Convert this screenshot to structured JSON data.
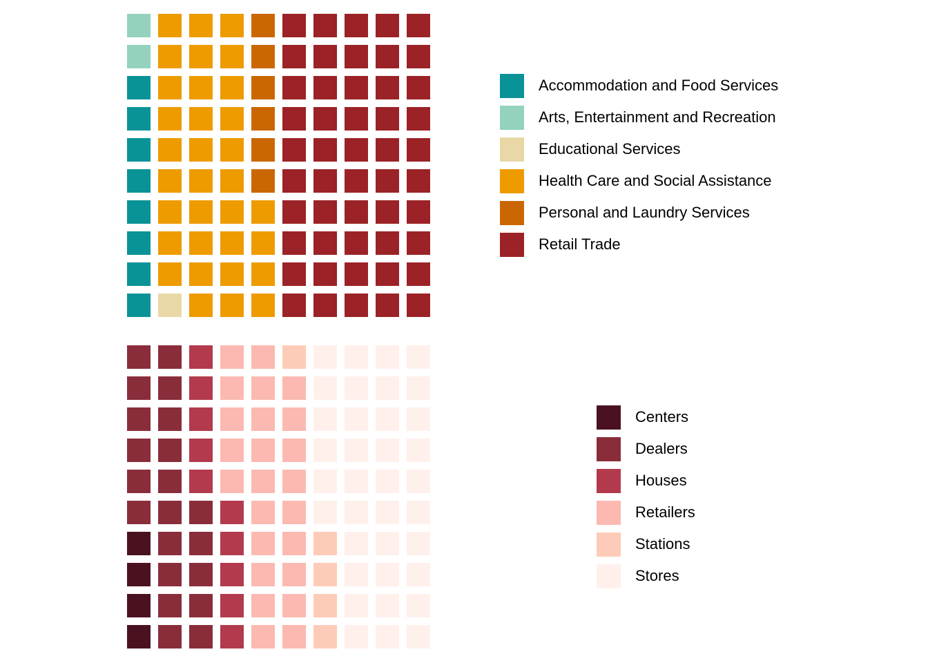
{
  "chart_data": [
    {
      "type": "waffle",
      "grid": {
        "rows": 10,
        "columns": 10,
        "fill_order": "column-wise, bottom to top, left to right"
      },
      "legend_position": "right",
      "series": [
        {
          "name": "Accommodation and Food Services",
          "value": 8,
          "color": "#0A9396"
        },
        {
          "name": "Arts, Entertainment and Recreation",
          "value": 2,
          "color": "#94D2BD"
        },
        {
          "name": "Educational Services",
          "value": 1,
          "color": "#E9D8A6"
        },
        {
          "name": "Health Care and Social Assistance",
          "value": 33,
          "color": "#EE9B00"
        },
        {
          "name": "Personal and Laundry Services",
          "value": 6,
          "color": "#CA6702"
        },
        {
          "name": "Retail Trade",
          "value": 50,
          "color": "#9B2226"
        }
      ]
    },
    {
      "type": "waffle",
      "grid": {
        "rows": 10,
        "columns": 10,
        "fill_order": "column-wise, bottom to top, left to right"
      },
      "legend_position": "right",
      "series": [
        {
          "name": "Centers",
          "value": 4,
          "color": "#4A1220"
        },
        {
          "name": "Dealers",
          "value": 21,
          "color": "#8A2D3B"
        },
        {
          "name": "Houses",
          "value": 10,
          "color": "#B23A4C"
        },
        {
          "name": "Retailers",
          "value": 24,
          "color": "#FBB9B1"
        },
        {
          "name": "Stations",
          "value": 5,
          "color": "#FDCCB8"
        },
        {
          "name": "Stores",
          "value": 36,
          "color": "#FFF0EC"
        }
      ]
    }
  ]
}
